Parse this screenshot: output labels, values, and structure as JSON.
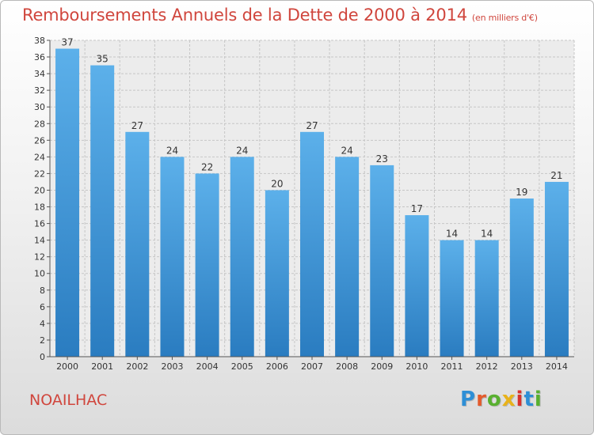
{
  "header": {
    "title": "Remboursements Annuels de la Dette de 2000 à 2014",
    "subtitle": "(en milliers d'€)"
  },
  "footer": {
    "commune": "NOAILHAC",
    "logo": {
      "letters": [
        "P",
        "r",
        "o",
        "x",
        "i",
        "t",
        "i"
      ],
      "colors": [
        "#2e8fd6",
        "#e45b2c",
        "#59b030",
        "#e8b21a",
        "#d8322e",
        "#2e8fd6",
        "#59b030"
      ]
    }
  },
  "chart_data": {
    "type": "bar",
    "title": "Remboursements Annuels de la Dette de 2000 à 2014",
    "subtitle": "(en milliers d'€)",
    "categories": [
      "2000",
      "2001",
      "2002",
      "2003",
      "2004",
      "2005",
      "2006",
      "2007",
      "2008",
      "2009",
      "2010",
      "2011",
      "2012",
      "2013",
      "2014"
    ],
    "values": [
      37,
      35,
      27,
      24,
      22,
      24,
      20,
      27,
      24,
      23,
      17,
      14,
      14,
      19,
      21
    ],
    "data_labels": [
      "37",
      "35",
      "27",
      "24",
      "22",
      "24",
      "20",
      "27",
      "24",
      "23",
      "17",
      "14",
      "14",
      "19",
      "21"
    ],
    "ylim": [
      0,
      38
    ],
    "yticks": [
      0,
      2,
      4,
      6,
      8,
      10,
      12,
      14,
      16,
      18,
      20,
      22,
      24,
      26,
      28,
      30,
      32,
      34,
      36,
      38
    ],
    "grid": true,
    "bar_color_top": "#5cb0ea",
    "bar_color_bottom": "#2a7cc0"
  }
}
